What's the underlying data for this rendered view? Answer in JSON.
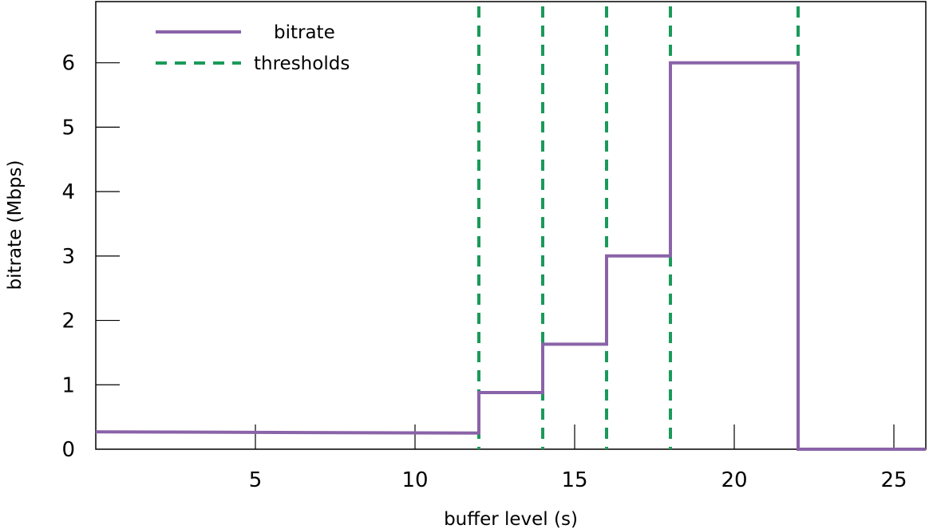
{
  "chart_data": {
    "type": "line",
    "xlabel": "buffer level (s)",
    "ylabel": "bitrate (Mbps)",
    "xlim": [
      0,
      26
    ],
    "ylim": [
      0,
      6.95
    ],
    "x_ticks": [
      5,
      10,
      15,
      20,
      25
    ],
    "y_ticks": [
      0,
      1,
      2,
      3,
      4,
      5,
      6
    ],
    "grid": false,
    "legend_position": "top-left",
    "series": [
      {
        "name": "bitrate",
        "style": "solid",
        "color": "#8a63a8",
        "points": [
          [
            0,
            0.27
          ],
          [
            12,
            0.25
          ],
          [
            12,
            0.88
          ],
          [
            14,
            0.88
          ],
          [
            14,
            1.63
          ],
          [
            16,
            1.63
          ],
          [
            16,
            3.0
          ],
          [
            18,
            3.0
          ],
          [
            18,
            6.0
          ],
          [
            22,
            6.0
          ],
          [
            22,
            0.0
          ],
          [
            26,
            0.0
          ]
        ]
      },
      {
        "name": "thresholds",
        "style": "dashed",
        "color": "#1a9a5a",
        "x": [
          12,
          14,
          16,
          18,
          22
        ]
      }
    ]
  }
}
